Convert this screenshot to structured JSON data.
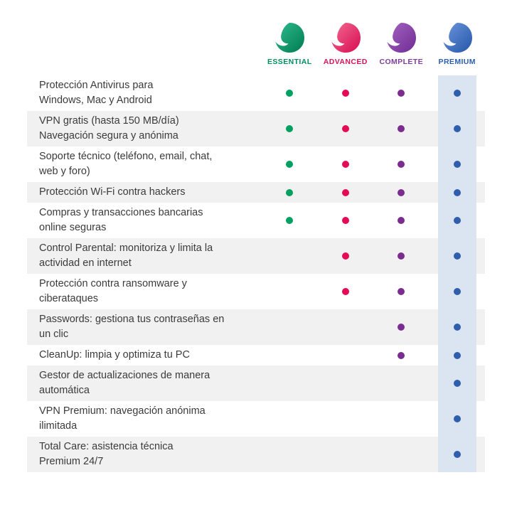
{
  "header": {
    "plans": [
      {
        "name": "ESSENTIAL",
        "color": "#008f5d",
        "dot_color": "#00a060",
        "logo_gradient": [
          "#2fbd8f",
          "#007a50"
        ]
      },
      {
        "name": "ADVANCED",
        "color": "#d6145c",
        "dot_color": "#e40a55",
        "logo_gradient": [
          "#f26d92",
          "#d80a52"
        ]
      },
      {
        "name": "COMPLETE",
        "color": "#7d3f98",
        "dot_color": "#7b2d8e",
        "logo_gradient": [
          "#a565c2",
          "#6f2b93"
        ]
      },
      {
        "name": "PREMIUM",
        "color": "#2b5fad",
        "dot_color": "#2f5eac",
        "logo_gradient": [
          "#6e97dd",
          "#2456a8"
        ],
        "column_highlight": "#dbe5f2"
      }
    ]
  },
  "features": [
    {
      "lines": [
        "Protección Antivirus para",
        "Windows, Mac y Android"
      ],
      "included": [
        true,
        true,
        true,
        true
      ]
    },
    {
      "lines": [
        "VPN gratis (hasta 150 MB/día)",
        "Navegación segura y anónima"
      ],
      "included": [
        true,
        true,
        true,
        true
      ]
    },
    {
      "lines": [
        "Soporte técnico (teléfono, email, chat,",
        "web y foro)"
      ],
      "included": [
        true,
        true,
        true,
        true
      ]
    },
    {
      "lines": [
        "Protección Wi-Fi contra hackers"
      ],
      "included": [
        true,
        true,
        true,
        true
      ]
    },
    {
      "lines": [
        "Compras y transacciones bancarias",
        "online seguras"
      ],
      "included": [
        true,
        true,
        true,
        true
      ]
    },
    {
      "lines": [
        "Control Parental: monitoriza y limita la",
        "actividad en internet"
      ],
      "included": [
        false,
        true,
        true,
        true
      ]
    },
    {
      "lines": [
        "Protección contra ransomware y",
        "ciberataques"
      ],
      "included": [
        false,
        true,
        true,
        true
      ]
    },
    {
      "lines": [
        "Passwords: gestiona tus contraseñas en",
        "un clic"
      ],
      "included": [
        false,
        false,
        true,
        true
      ]
    },
    {
      "lines": [
        "CleanUp: limpia y optimiza tu PC"
      ],
      "included": [
        false,
        false,
        true,
        true
      ]
    },
    {
      "lines": [
        "Gestor de actualizaciones de manera",
        "automática"
      ],
      "included": [
        false,
        false,
        false,
        true
      ]
    },
    {
      "lines": [
        "VPN Premium: navegación anónima",
        "ilimitada"
      ],
      "included": [
        false,
        false,
        false,
        true
      ]
    },
    {
      "lines": [
        "Total Care: asistencia técnica",
        "Premium 24/7"
      ],
      "included": [
        false,
        false,
        false,
        true
      ]
    }
  ]
}
